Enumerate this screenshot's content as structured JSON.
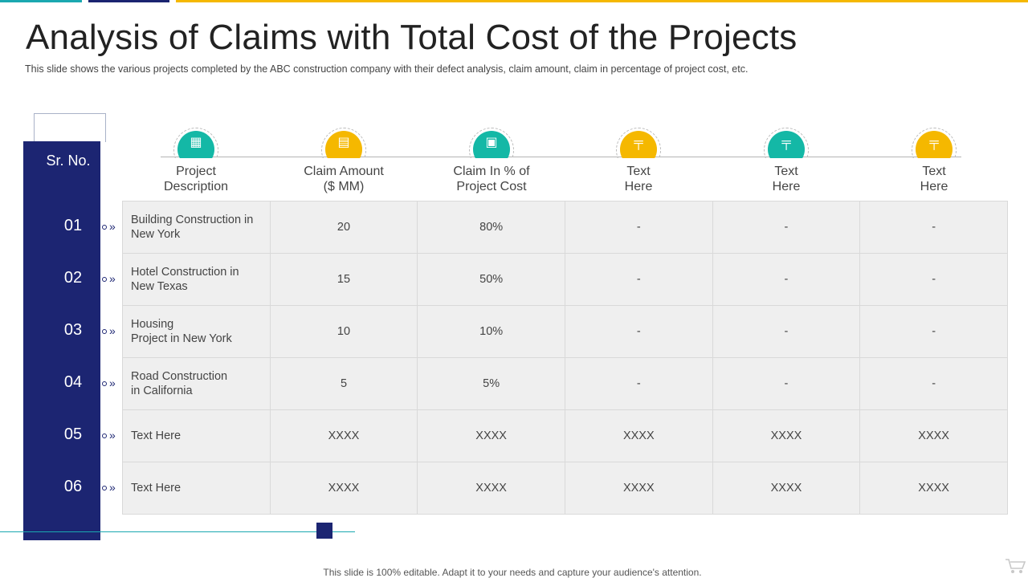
{
  "slide": {
    "title": "Analysis of Claims with Total Cost of the Projects",
    "subtitle": "This slide shows the various  projects completed by the ABC construction company with their defect analysis, claim amount, claim in percentage  of project cost, etc.",
    "footer": "This slide is 100% editable. Adapt it to your needs and capture your audience's attention."
  },
  "colors": {
    "navy": "#1c2572",
    "teal": "#14b8a6",
    "gold": "#f5b800",
    "cell": "#efefef"
  },
  "sr_header": "Sr. No.",
  "columns": [
    {
      "lines": [
        "Project",
        "Description"
      ],
      "icon": "buildings-icon",
      "glyph": "▦",
      "color": "teal"
    },
    {
      "lines": [
        "Claim Amount",
        "($ MM)"
      ],
      "icon": "money-icon",
      "glyph": "▤",
      "color": "gold"
    },
    {
      "lines": [
        "Claim In % of",
        "Project Cost"
      ],
      "icon": "construction-truck-icon",
      "glyph": "▣",
      "color": "teal"
    },
    {
      "lines": [
        "Text",
        "Here"
      ],
      "icon": "crane-icon",
      "glyph": "╤",
      "color": "gold"
    },
    {
      "lines": [
        "Text",
        "Here"
      ],
      "icon": "crane-icon",
      "glyph": "╤",
      "color": "teal"
    },
    {
      "lines": [
        "Text",
        "Here"
      ],
      "icon": "crane-icon",
      "glyph": "╤",
      "color": "gold"
    }
  ],
  "row_marker": "»",
  "rows": [
    {
      "num": "01",
      "desc": [
        "Building Construction in",
        "New York"
      ],
      "values": [
        "20",
        "80%",
        "-",
        "-",
        "-"
      ]
    },
    {
      "num": "02",
      "desc": [
        "Hotel Construction in",
        "New Texas"
      ],
      "values": [
        "15",
        "50%",
        "-",
        "-",
        "-"
      ]
    },
    {
      "num": "03",
      "desc": [
        "Housing",
        "Project in New York"
      ],
      "values": [
        "10",
        "10%",
        "-",
        "-",
        "-"
      ]
    },
    {
      "num": "04",
      "desc": [
        "Road Construction",
        "in California"
      ],
      "values": [
        "5",
        "5%",
        "-",
        "-",
        "-"
      ]
    },
    {
      "num": "05",
      "desc": [
        "Text Here"
      ],
      "values": [
        "XXXX",
        "XXXX",
        "XXXX",
        "XXXX",
        "XXXX"
      ]
    },
    {
      "num": "06",
      "desc": [
        "Text Here"
      ],
      "values": [
        "XXXX",
        "XXXX",
        "XXXX",
        "XXXX",
        "XXXX"
      ]
    }
  ]
}
